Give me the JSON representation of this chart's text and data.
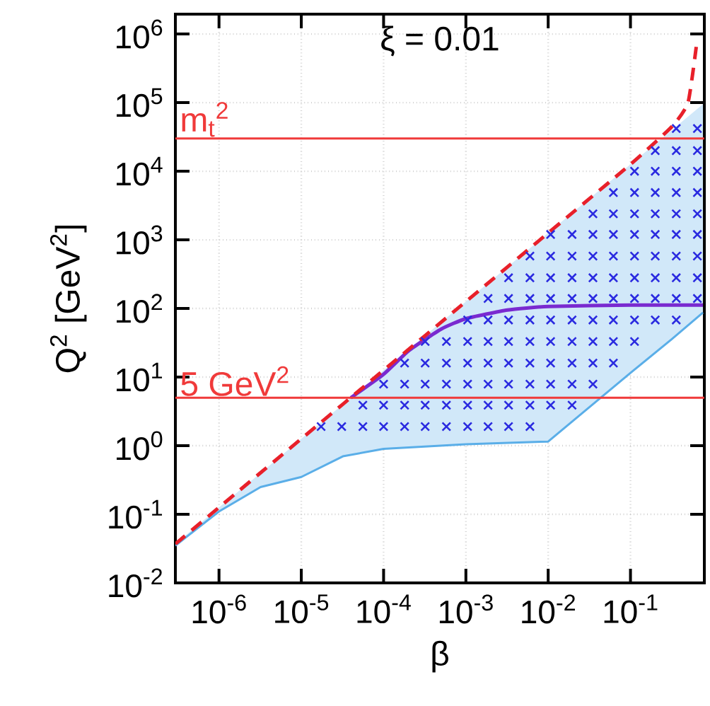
{
  "chart_data": {
    "type": "line",
    "title": "ξ = 0.01",
    "xlabel": "β",
    "ylabel": "Q$^{2}$ [GeV$^{2}$]",
    "log": "xy",
    "grid": true,
    "xlim": [
      2.95e-07,
      0.79
    ],
    "ylim": [
      0.01,
      1950000.0
    ],
    "xticks": [
      {
        "value": 1e-06,
        "label": "10$^{-6}$"
      },
      {
        "value": 1e-05,
        "label": "10$^{-5}$"
      },
      {
        "value": 0.0001,
        "label": "10$^{-4}$"
      },
      {
        "value": 0.001,
        "label": "10$^{-3}$"
      },
      {
        "value": 0.01,
        "label": "10$^{-2}$"
      },
      {
        "value": 0.1,
        "label": "10$^{-1}$"
      }
    ],
    "yticks": [
      {
        "value": 0.01,
        "label": "10$^{-2}$"
      },
      {
        "value": 0.1,
        "label": "10$^{-1}$"
      },
      {
        "value": 1,
        "label": "10$^{0}$"
      },
      {
        "value": 10,
        "label": "10$^{1}$"
      },
      {
        "value": 100,
        "label": "10$^{2}$"
      },
      {
        "value": 1000,
        "label": "10$^{3}$"
      },
      {
        "value": 10000,
        "label": "10$^{4}$"
      },
      {
        "value": 100000,
        "label": "10$^{5}$"
      },
      {
        "value": 1000000,
        "label": "10$^{6}$"
      }
    ],
    "series": [
      {
        "color": "#5aaee8",
        "x": [
          2.95e-07,
          1e-06,
          3.2e-06,
          1e-05,
          3.2e-05,
          0.0001,
          0.001,
          0.01,
          0.1,
          0.32,
          0.76
        ],
        "values": [
          0.035,
          0.11,
          0.25,
          0.35,
          0.7,
          0.9,
          1.05,
          1.15,
          11.5,
          36,
          87
        ],
        "lower": [
          0.035,
          0.11,
          0.25,
          0.35,
          0.7,
          0.9,
          1.05,
          1.15,
          11.5,
          36,
          87
        ],
        "upper": [
          0.037,
          0.126,
          0.4,
          1.26,
          4,
          12.6,
          126,
          1260,
          12600,
          40000,
          95000
        ]
      },
      {
        "type": "scatter",
        "color": "#2a2ae0",
        "marker": "cross",
        "x": [
          1.74e-05,
          3.1e-05,
          5.6e-05,
          5.6e-05,
          0.0001,
          0.0001,
          0.0001,
          0.00018,
          0.00018,
          0.00018,
          0.00018,
          0.00032,
          0.00032,
          0.00032,
          0.00032,
          0.00032,
          0.00058,
          0.00058,
          0.00058,
          0.00058,
          0.00058,
          0.00105,
          0.00105,
          0.00105,
          0.00105,
          0.00105,
          0.00105,
          0.00186,
          0.00186,
          0.00186,
          0.00186,
          0.00186,
          0.00186,
          0.00186,
          0.0033,
          0.0033,
          0.0033,
          0.0033,
          0.0033,
          0.0033,
          0.0033,
          0.0033,
          0.006,
          0.006,
          0.006,
          0.006,
          0.006,
          0.006,
          0.006,
          0.006,
          0.006,
          0.0107,
          0.0107,
          0.0107,
          0.0107,
          0.0107,
          0.0107,
          0.0107,
          0.0107,
          0.0107,
          0.0195,
          0.0195,
          0.0195,
          0.0195,
          0.0195,
          0.0195,
          0.0195,
          0.0195,
          0.0195,
          0.035,
          0.035,
          0.035,
          0.035,
          0.035,
          0.035,
          0.035,
          0.035,
          0.035,
          0.062,
          0.062,
          0.062,
          0.062,
          0.062,
          0.062,
          0.062,
          0.062,
          0.062,
          0.112,
          0.112,
          0.112,
          0.112,
          0.112,
          0.112,
          0.112,
          0.112,
          0.112,
          0.2,
          0.2,
          0.2,
          0.2,
          0.2,
          0.2,
          0.2,
          0.2,
          0.2,
          0.36,
          0.36,
          0.36,
          0.36,
          0.36,
          0.36,
          0.36,
          0.36,
          0.36,
          0.36,
          0.65,
          0.65,
          0.65,
          0.65,
          0.65,
          0.65,
          0.65,
          0.65,
          0.65
        ],
        "values": [
          1.9,
          1.9,
          1.9,
          3.9,
          1.9,
          3.9,
          7.9,
          1.9,
          3.9,
          7.9,
          16,
          1.9,
          3.9,
          7.9,
          16,
          33,
          1.9,
          3.9,
          7.9,
          16,
          33,
          1.9,
          3.9,
          7.9,
          16,
          33,
          68,
          1.9,
          3.9,
          7.9,
          16,
          33,
          68,
          140,
          1.9,
          3.9,
          7.9,
          16,
          33,
          68,
          140,
          280,
          1.9,
          3.9,
          7.9,
          16,
          33,
          68,
          140,
          280,
          580,
          3.9,
          7.9,
          16,
          33,
          68,
          140,
          280,
          580,
          1200,
          3.9,
          7.9,
          16,
          33,
          68,
          140,
          280,
          580,
          1200,
          7.9,
          16,
          33,
          68,
          140,
          280,
          580,
          1200,
          2400,
          16,
          33,
          68,
          140,
          280,
          580,
          1200,
          2400,
          4900,
          33,
          68,
          140,
          280,
          580,
          1200,
          2400,
          4900,
          10000,
          68,
          140,
          280,
          580,
          1200,
          2400,
          4900,
          10000,
          20000,
          68,
          140,
          280,
          580,
          1200,
          2400,
          4900,
          10000,
          20000,
          42000,
          140,
          280,
          580,
          1200,
          2400,
          4900,
          10000,
          20000,
          42000
        ]
      },
      {
        "type": "line",
        "color": "#7a2ad0",
        "x": [
          4e-05,
          0.0001,
          0.0002,
          0.0005,
          0.001,
          0.0032,
          0.01,
          0.1,
          0.76
        ],
        "values": [
          5,
          11,
          24,
          50,
          71,
          95,
          107,
          112,
          112
        ]
      },
      {
        "type": "line",
        "color": "#e8202a",
        "line_style": "dashed",
        "x": [
          2.95e-07,
          1e-06,
          1e-05,
          0.0001,
          0.001,
          0.01,
          0.1,
          0.32,
          0.5,
          0.63
        ],
        "values": [
          0.037,
          0.126,
          1.26,
          12.6,
          126,
          1260,
          12600,
          45000,
          100000,
          650000
        ]
      }
    ],
    "ref_lines": [
      {
        "axis": "y",
        "value": 30000,
        "label": "m$_{t}$$^{2}$",
        "color": "#f03a3a"
      },
      {
        "axis": "y",
        "value": 5,
        "label": "5 GeV$^{2}$",
        "color": "#f03a3a"
      }
    ]
  }
}
